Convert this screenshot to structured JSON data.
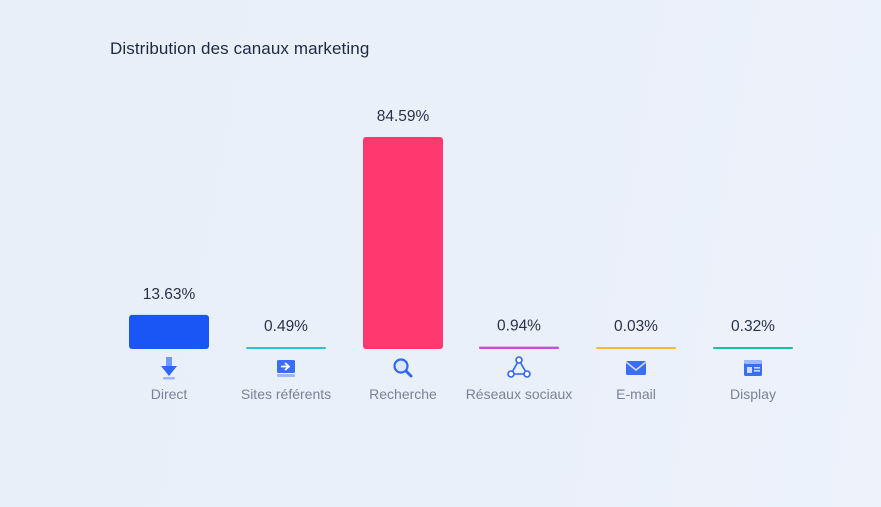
{
  "chart_data": {
    "type": "bar",
    "title": "Distribution des canaux marketing",
    "categories": [
      "Direct",
      "Sites référents",
      "Recherche",
      "Réseaux sociaux",
      "E-mail",
      "Display"
    ],
    "values": [
      13.63,
      0.49,
      84.59,
      0.94,
      0.03,
      0.32
    ],
    "value_labels": [
      "13.63%",
      "0.49%",
      "84.59%",
      "0.94%",
      "0.03%",
      "0.32%"
    ],
    "colors": [
      "#1a56f5",
      "#27c4d8",
      "#ff3870",
      "#c84ee0",
      "#f5b83a",
      "#17c29a"
    ],
    "icons": [
      "arrow-down-icon",
      "referral-screen-icon",
      "search-magnifier-icon",
      "social-network-icon",
      "mail-envelope-icon",
      "display-window-icon"
    ],
    "ylim": [
      0,
      84.59
    ],
    "grid": false,
    "legend": "none"
  }
}
